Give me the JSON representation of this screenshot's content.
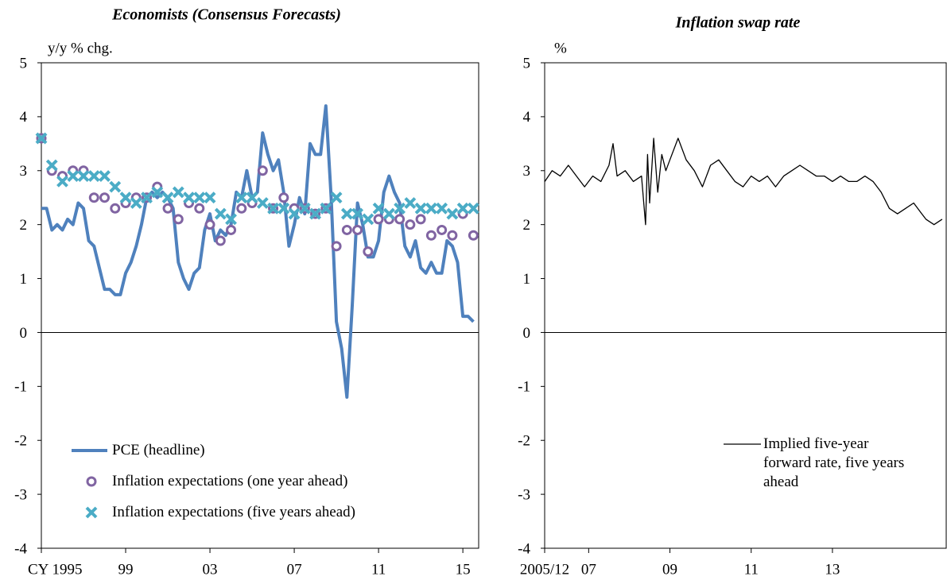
{
  "chart_data": [
    {
      "type": "line",
      "title": "Economists (Consensus Forecasts)",
      "y_label": "y/y % chg.",
      "xlim": [
        1995,
        2015.75
      ],
      "xticks": [
        {
          "value": 1995,
          "label": "CY 1995"
        },
        {
          "value": 1999,
          "label": "99"
        },
        {
          "value": 2003,
          "label": "03"
        },
        {
          "value": 2007,
          "label": "07"
        },
        {
          "value": 2011,
          "label": "11"
        },
        {
          "value": 2015,
          "label": "15"
        }
      ],
      "ylim": [
        -4,
        5
      ],
      "yticks": [
        -4,
        -3,
        -2,
        -1,
        0,
        1,
        2,
        3,
        4,
        5
      ],
      "legend": "lower left",
      "series": [
        {
          "name": "PCE (headline)",
          "color": "#4f81bd",
          "style": "line",
          "x": [
            1995.0,
            1995.25,
            1995.5,
            1995.75,
            1996.0,
            1996.25,
            1996.5,
            1996.75,
            1997.0,
            1997.25,
            1997.5,
            1997.75,
            1998.0,
            1998.25,
            1998.5,
            1998.75,
            1999.0,
            1999.25,
            1999.5,
            1999.75,
            2000.0,
            2000.25,
            2000.5,
            2000.75,
            2001.0,
            2001.25,
            2001.5,
            2001.75,
            2002.0,
            2002.25,
            2002.5,
            2002.75,
            2003.0,
            2003.25,
            2003.5,
            2003.75,
            2004.0,
            2004.25,
            2004.5,
            2004.75,
            2005.0,
            2005.25,
            2005.5,
            2005.75,
            2006.0,
            2006.25,
            2006.5,
            2006.75,
            2007.0,
            2007.25,
            2007.5,
            2007.75,
            2008.0,
            2008.25,
            2008.5,
            2008.75,
            2009.0,
            2009.25,
            2009.5,
            2009.75,
            2010.0,
            2010.25,
            2010.5,
            2010.75,
            2011.0,
            2011.25,
            2011.5,
            2011.75,
            2012.0,
            2012.25,
            2012.5,
            2012.75,
            2013.0,
            2013.25,
            2013.5,
            2013.75,
            2014.0,
            2014.25,
            2014.5,
            2014.75,
            2015.0,
            2015.25,
            2015.5
          ],
          "values": [
            2.3,
            2.3,
            1.9,
            2.0,
            1.9,
            2.1,
            2.0,
            2.4,
            2.3,
            1.7,
            1.6,
            1.2,
            0.8,
            0.8,
            0.7,
            0.7,
            1.1,
            1.3,
            1.6,
            2.0,
            2.5,
            2.6,
            2.5,
            2.6,
            2.5,
            2.3,
            1.3,
            1.0,
            0.8,
            1.1,
            1.2,
            1.9,
            2.2,
            1.7,
            1.9,
            1.8,
            2.0,
            2.6,
            2.5,
            3.0,
            2.5,
            2.6,
            3.7,
            3.3,
            3.0,
            3.2,
            2.6,
            1.6,
            2.0,
            2.5,
            2.2,
            3.5,
            3.3,
            3.3,
            4.2,
            2.5,
            0.2,
            -0.3,
            -1.2,
            0.5,
            2.4,
            2.0,
            1.4,
            1.4,
            1.7,
            2.6,
            2.9,
            2.6,
            2.4,
            1.6,
            1.4,
            1.7,
            1.2,
            1.1,
            1.3,
            1.1,
            1.1,
            1.7,
            1.6,
            1.3,
            0.3,
            0.3,
            0.2
          ]
        },
        {
          "name": "Inflation expectations (one year ahead)",
          "color": "#8064a2",
          "style": "circle",
          "x": [
            1995.0,
            1995.5,
            1996.0,
            1996.5,
            1997.0,
            1997.5,
            1998.0,
            1998.5,
            1999.0,
            1999.5,
            2000.0,
            2000.5,
            2001.0,
            2001.5,
            2002.0,
            2002.5,
            2003.0,
            2003.5,
            2004.0,
            2004.5,
            2005.0,
            2005.5,
            2006.0,
            2006.5,
            2007.0,
            2007.5,
            2008.0,
            2008.5,
            2009.0,
            2009.5,
            2010.0,
            2010.5,
            2011.0,
            2011.5,
            2012.0,
            2012.5,
            2013.0,
            2013.5,
            2014.0,
            2014.5,
            2015.0,
            2015.5
          ],
          "values": [
            3.6,
            3.0,
            2.9,
            3.0,
            3.0,
            2.5,
            2.5,
            2.3,
            2.4,
            2.5,
            2.5,
            2.7,
            2.3,
            2.1,
            2.4,
            2.3,
            2.0,
            1.7,
            1.9,
            2.3,
            2.4,
            3.0,
            2.3,
            2.5,
            2.3,
            2.3,
            2.2,
            2.3,
            1.6,
            1.9,
            1.9,
            1.5,
            2.1,
            2.1,
            2.1,
            2.0,
            2.1,
            1.8,
            1.9,
            1.8,
            2.2,
            1.8
          ]
        },
        {
          "name": "Inflation expectations (five years ahead)",
          "color": "#4bacc6",
          "style": "cross",
          "x": [
            1995.0,
            1995.5,
            1996.0,
            1996.5,
            1997.0,
            1997.5,
            1998.0,
            1998.5,
            1999.0,
            1999.5,
            2000.0,
            2000.5,
            2001.0,
            2001.5,
            2002.0,
            2002.5,
            2003.0,
            2003.5,
            2004.0,
            2004.5,
            2005.0,
            2005.5,
            2006.0,
            2006.5,
            2007.0,
            2007.5,
            2008.0,
            2008.5,
            2009.0,
            2009.5,
            2010.0,
            2010.5,
            2011.0,
            2011.5,
            2012.0,
            2012.5,
            2013.0,
            2013.5,
            2014.0,
            2014.5,
            2015.0,
            2015.5
          ],
          "values": [
            3.6,
            3.1,
            2.8,
            2.9,
            2.9,
            2.9,
            2.9,
            2.7,
            2.5,
            2.4,
            2.5,
            2.6,
            2.5,
            2.6,
            2.5,
            2.5,
            2.5,
            2.2,
            2.1,
            2.5,
            2.5,
            2.4,
            2.3,
            2.3,
            2.2,
            2.3,
            2.2,
            2.3,
            2.5,
            2.2,
            2.2,
            2.1,
            2.3,
            2.2,
            2.3,
            2.4,
            2.3,
            2.3,
            2.3,
            2.2,
            2.3,
            2.3
          ]
        }
      ]
    },
    {
      "type": "line",
      "title": "Inflation swap rate",
      "y_label": "%",
      "xlim": [
        2005.917,
        2015.8
      ],
      "xticks": [
        {
          "value": 2005.917,
          "label": "2005/12"
        },
        {
          "value": 2007,
          "label": "07"
        },
        {
          "value": 2009,
          "label": "09"
        },
        {
          "value": 2011,
          "label": "11"
        },
        {
          "value": 2013,
          "label": "13"
        }
      ],
      "ylim": [
        -4,
        5
      ],
      "yticks": [
        -4,
        -3,
        -2,
        -1,
        0,
        1,
        2,
        3,
        4,
        5
      ],
      "legend": "lower right",
      "series": [
        {
          "name": "Implied five-year forward rate, five years ahead",
          "color": "#000000",
          "style": "line",
          "x": [
            2005.92,
            2006.1,
            2006.3,
            2006.5,
            2006.7,
            2006.9,
            2007.1,
            2007.3,
            2007.5,
            2007.6,
            2007.7,
            2007.9,
            2008.1,
            2008.3,
            2008.4,
            2008.45,
            2008.5,
            2008.6,
            2008.7,
            2008.8,
            2008.9,
            2009.0,
            2009.2,
            2009.4,
            2009.6,
            2009.8,
            2010.0,
            2010.2,
            2010.4,
            2010.6,
            2010.8,
            2011.0,
            2011.2,
            2011.4,
            2011.6,
            2011.8,
            2012.0,
            2012.2,
            2012.4,
            2012.6,
            2012.8,
            2013.0,
            2013.2,
            2013.4,
            2013.6,
            2013.8,
            2014.0,
            2014.2,
            2014.4,
            2014.6,
            2014.8,
            2015.0,
            2015.2,
            2015.3,
            2015.5,
            2015.7
          ],
          "values": [
            2.8,
            3.0,
            2.9,
            3.1,
            2.9,
            2.7,
            2.9,
            2.8,
            3.1,
            3.5,
            2.9,
            3.0,
            2.8,
            2.9,
            2.0,
            3.3,
            2.4,
            3.6,
            2.6,
            3.3,
            3.0,
            3.2,
            3.6,
            3.2,
            3.0,
            2.7,
            3.1,
            3.2,
            3.0,
            2.8,
            2.7,
            2.9,
            2.8,
            2.9,
            2.7,
            2.9,
            3.0,
            3.1,
            3.0,
            2.9,
            2.9,
            2.8,
            2.9,
            2.8,
            2.8,
            2.9,
            2.8,
            2.6,
            2.3,
            2.2,
            2.3,
            2.4,
            2.2,
            2.1,
            2.0,
            2.1
          ]
        }
      ]
    }
  ]
}
